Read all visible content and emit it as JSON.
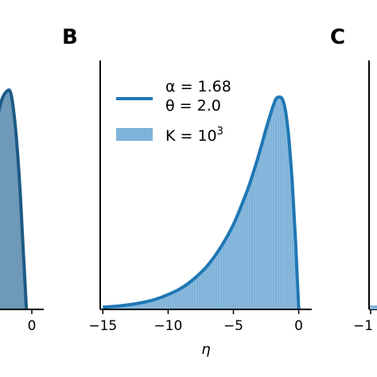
{
  "colors": {
    "curve": "#1f77b4",
    "hist_fill": "#7fb2d9",
    "hist_fill_left": "#6f99b8",
    "axis": "#000000"
  },
  "chart_data": [
    {
      "panel_letter": "",
      "type": "area",
      "cropped": "left",
      "xlim": [
        -2.6,
        1.0
      ],
      "ylim": [
        0,
        1.0
      ],
      "xticks": [
        0
      ],
      "xtick_labels": [
        "0"
      ],
      "peak_x": -1.2,
      "peak_y": 1.0
    },
    {
      "panel_letter": "B",
      "type": "area",
      "xlabel": "η",
      "ylabel": "",
      "xlim": [
        -15.2,
        1.0
      ],
      "ylim": [
        0,
        1.0
      ],
      "xticks": [
        -15,
        -10,
        -5,
        0
      ],
      "xtick_labels": [
        "−15",
        "−10",
        "−5",
        "0"
      ],
      "legend_position": "top-left",
      "series": [
        {
          "kind": "line",
          "name_line1": "α = 1.68",
          "name_line2": "θ = 2.0",
          "x": [
            -15,
            -14,
            -13,
            -12,
            -11,
            -10,
            -9,
            -8,
            -7,
            -6,
            -5,
            -4,
            -3.5,
            -3,
            -2.5,
            -2,
            -1.75,
            -1.5,
            -1.25,
            -1,
            -0.75,
            -0.5,
            -0.25,
            0
          ],
          "y": [
            0.01,
            0.015,
            0.022,
            0.032,
            0.047,
            0.07,
            0.1,
            0.145,
            0.205,
            0.29,
            0.4,
            0.55,
            0.64,
            0.74,
            0.85,
            0.95,
            0.99,
            1.0,
            0.99,
            0.93,
            0.8,
            0.6,
            0.33,
            0.0
          ]
        },
        {
          "kind": "histogram",
          "name": "K = 10³",
          "name_base": "K = 10",
          "name_exponent": "3"
        }
      ]
    },
    {
      "panel_letter": "C",
      "type": "area",
      "cropped": "right",
      "xtick_labels": [
        "−1"
      ]
    }
  ]
}
